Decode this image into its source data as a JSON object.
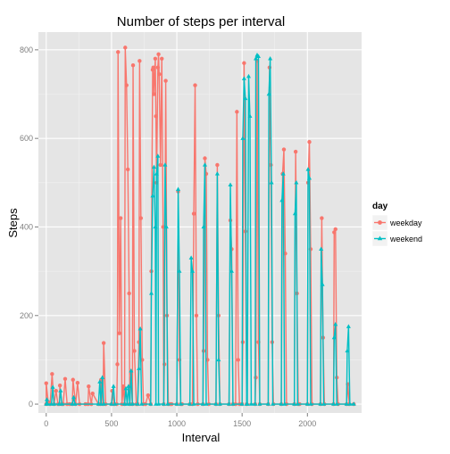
{
  "chart_data": {
    "type": "line",
    "title": "Number of steps per interval",
    "xlabel": "Interval",
    "ylabel": "Steps",
    "xlim": [
      -60,
      2415
    ],
    "ylim": [
      -20,
      840
    ],
    "x_ticks": [
      0,
      500,
      1000,
      1500,
      2000
    ],
    "y_ticks": [
      0,
      200,
      400,
      600,
      800
    ],
    "grid": true,
    "legend_position": "right",
    "legend_title": "day",
    "series": [
      {
        "name": "weekday",
        "color": "#F8766D",
        "marker": "circle",
        "points": [
          [
            0,
            0
          ],
          [
            0,
            47
          ],
          [
            15,
            5
          ],
          [
            30,
            0
          ],
          [
            45,
            68
          ],
          [
            60,
            0
          ],
          [
            75,
            30
          ],
          [
            90,
            0
          ],
          [
            100,
            0
          ],
          [
            105,
            42
          ],
          [
            120,
            0
          ],
          [
            130,
            0
          ],
          [
            145,
            57
          ],
          [
            160,
            0
          ],
          [
            180,
            0
          ],
          [
            200,
            0
          ],
          [
            205,
            55
          ],
          [
            225,
            0
          ],
          [
            240,
            48
          ],
          [
            255,
            0
          ],
          [
            300,
            0
          ],
          [
            320,
            0
          ],
          [
            325,
            40
          ],
          [
            345,
            0
          ],
          [
            355,
            24
          ],
          [
            400,
            0
          ],
          [
            415,
            0
          ],
          [
            420,
            55
          ],
          [
            435,
            0
          ],
          [
            440,
            138
          ],
          [
            455,
            0
          ],
          [
            500,
            0
          ],
          [
            505,
            30
          ],
          [
            520,
            0
          ],
          [
            540,
            0
          ],
          [
            545,
            90
          ],
          [
            550,
            795
          ],
          [
            560,
            160
          ],
          [
            570,
            420
          ],
          [
            580,
            0
          ],
          [
            590,
            40
          ],
          [
            600,
            0
          ],
          [
            605,
            805
          ],
          [
            615,
            720
          ],
          [
            625,
            530
          ],
          [
            635,
            250
          ],
          [
            640,
            0
          ],
          [
            650,
            70
          ],
          [
            660,
            0
          ],
          [
            665,
            765
          ],
          [
            675,
            120
          ],
          [
            690,
            0
          ],
          [
            700,
            0
          ],
          [
            710,
            140
          ],
          [
            715,
            775
          ],
          [
            725,
            420
          ],
          [
            735,
            100
          ],
          [
            745,
            0
          ],
          [
            760,
            0
          ],
          [
            780,
            20
          ],
          [
            800,
            0
          ],
          [
            805,
            300
          ],
          [
            815,
            755
          ],
          [
            820,
            760
          ],
          [
            825,
            700
          ],
          [
            835,
            780
          ],
          [
            840,
            650
          ],
          [
            845,
            500
          ],
          [
            855,
            760
          ],
          [
            860,
            790
          ],
          [
            865,
            745
          ],
          [
            875,
            540
          ],
          [
            885,
            780
          ],
          [
            895,
            400
          ],
          [
            900,
            0
          ],
          [
            905,
            90
          ],
          [
            915,
            730
          ],
          [
            925,
            200
          ],
          [
            935,
            0
          ],
          [
            950,
            0
          ],
          [
            960,
            0
          ],
          [
            1000,
            0
          ],
          [
            1010,
            480
          ],
          [
            1020,
            100
          ],
          [
            1030,
            0
          ],
          [
            1040,
            0
          ],
          [
            1100,
            0
          ],
          [
            1120,
            0
          ],
          [
            1130,
            430
          ],
          [
            1140,
            720
          ],
          [
            1150,
            200
          ],
          [
            1160,
            0
          ],
          [
            1200,
            0
          ],
          [
            1205,
            120
          ],
          [
            1215,
            555
          ],
          [
            1225,
            520
          ],
          [
            1235,
            100
          ],
          [
            1245,
            0
          ],
          [
            1300,
            0
          ],
          [
            1310,
            540
          ],
          [
            1320,
            200
          ],
          [
            1330,
            0
          ],
          [
            1400,
            0
          ],
          [
            1410,
            415
          ],
          [
            1420,
            350
          ],
          [
            1430,
            0
          ],
          [
            1450,
            0
          ],
          [
            1460,
            660
          ],
          [
            1470,
            100
          ],
          [
            1480,
            0
          ],
          [
            1500,
            0
          ],
          [
            1505,
            140
          ],
          [
            1515,
            770
          ],
          [
            1525,
            390
          ],
          [
            1535,
            0
          ],
          [
            1600,
            0
          ],
          [
            1605,
            60
          ],
          [
            1615,
            775
          ],
          [
            1625,
            140
          ],
          [
            1635,
            0
          ],
          [
            1700,
            0
          ],
          [
            1710,
            760
          ],
          [
            1720,
            540
          ],
          [
            1730,
            140
          ],
          [
            1740,
            0
          ],
          [
            1800,
            0
          ],
          [
            1810,
            520
          ],
          [
            1820,
            575
          ],
          [
            1830,
            340
          ],
          [
            1840,
            0
          ],
          [
            1900,
            0
          ],
          [
            1910,
            570
          ],
          [
            1920,
            250
          ],
          [
            1930,
            0
          ],
          [
            1940,
            0
          ],
          [
            2000,
            0
          ],
          [
            2005,
            500
          ],
          [
            2015,
            592
          ],
          [
            2025,
            350
          ],
          [
            2035,
            0
          ],
          [
            2100,
            0
          ],
          [
            2110,
            420
          ],
          [
            2120,
            150
          ],
          [
            2130,
            0
          ],
          [
            2200,
            0
          ],
          [
            2205,
            388
          ],
          [
            2215,
            395
          ],
          [
            2225,
            60
          ],
          [
            2235,
            0
          ],
          [
            2300,
            0
          ],
          [
            2310,
            45
          ],
          [
            2320,
            0
          ],
          [
            2355,
            0
          ]
        ]
      },
      {
        "name": "weekend",
        "color": "#00BFC4",
        "marker": "triangle",
        "points": [
          [
            0,
            0
          ],
          [
            5,
            10
          ],
          [
            10,
            0
          ],
          [
            40,
            0
          ],
          [
            50,
            38
          ],
          [
            60,
            0
          ],
          [
            100,
            0
          ],
          [
            110,
            30
          ],
          [
            120,
            0
          ],
          [
            200,
            0
          ],
          [
            210,
            15
          ],
          [
            220,
            0
          ],
          [
            400,
            0
          ],
          [
            410,
            50
          ],
          [
            420,
            0
          ],
          [
            430,
            60
          ],
          [
            440,
            0
          ],
          [
            500,
            0
          ],
          [
            515,
            40
          ],
          [
            525,
            0
          ],
          [
            600,
            0
          ],
          [
            610,
            35
          ],
          [
            620,
            0
          ],
          [
            630,
            40
          ],
          [
            640,
            0
          ],
          [
            650,
            75
          ],
          [
            660,
            0
          ],
          [
            700,
            0
          ],
          [
            710,
            80
          ],
          [
            720,
            170
          ],
          [
            730,
            0
          ],
          [
            800,
            0
          ],
          [
            805,
            250
          ],
          [
            815,
            470
          ],
          [
            825,
            535
          ],
          [
            835,
            400
          ],
          [
            840,
            0
          ],
          [
            845,
            520
          ],
          [
            855,
            560
          ],
          [
            860,
            0
          ],
          [
            900,
            0
          ],
          [
            910,
            540
          ],
          [
            920,
            400
          ],
          [
            930,
            0
          ],
          [
            1000,
            0
          ],
          [
            1010,
            485
          ],
          [
            1020,
            300
          ],
          [
            1030,
            0
          ],
          [
            1100,
            0
          ],
          [
            1110,
            330
          ],
          [
            1120,
            300
          ],
          [
            1130,
            0
          ],
          [
            1200,
            0
          ],
          [
            1205,
            400
          ],
          [
            1215,
            540
          ],
          [
            1225,
            0
          ],
          [
            1300,
            0
          ],
          [
            1310,
            520
          ],
          [
            1320,
            100
          ],
          [
            1330,
            0
          ],
          [
            1400,
            0
          ],
          [
            1410,
            495
          ],
          [
            1420,
            300
          ],
          [
            1430,
            0
          ],
          [
            1500,
            0
          ],
          [
            1505,
            600
          ],
          [
            1515,
            735
          ],
          [
            1525,
            690
          ],
          [
            1535,
            0
          ],
          [
            1540,
            0
          ],
          [
            1550,
            740
          ],
          [
            1560,
            650
          ],
          [
            1570,
            0
          ],
          [
            1600,
            0
          ],
          [
            1605,
            780
          ],
          [
            1615,
            788
          ],
          [
            1625,
            785
          ],
          [
            1635,
            0
          ],
          [
            1700,
            0
          ],
          [
            1705,
            700
          ],
          [
            1715,
            780
          ],
          [
            1725,
            500
          ],
          [
            1735,
            0
          ],
          [
            1800,
            0
          ],
          [
            1805,
            460
          ],
          [
            1815,
            520
          ],
          [
            1825,
            0
          ],
          [
            1900,
            0
          ],
          [
            1905,
            430
          ],
          [
            1915,
            500
          ],
          [
            1925,
            0
          ],
          [
            2000,
            0
          ],
          [
            2005,
            530
          ],
          [
            2015,
            510
          ],
          [
            2025,
            0
          ],
          [
            2100,
            0
          ],
          [
            2105,
            350
          ],
          [
            2115,
            270
          ],
          [
            2125,
            0
          ],
          [
            2200,
            0
          ],
          [
            2205,
            150
          ],
          [
            2215,
            180
          ],
          [
            2225,
            0
          ],
          [
            2300,
            0
          ],
          [
            2305,
            120
          ],
          [
            2315,
            175
          ],
          [
            2325,
            0
          ],
          [
            2355,
            0
          ]
        ]
      }
    ]
  }
}
